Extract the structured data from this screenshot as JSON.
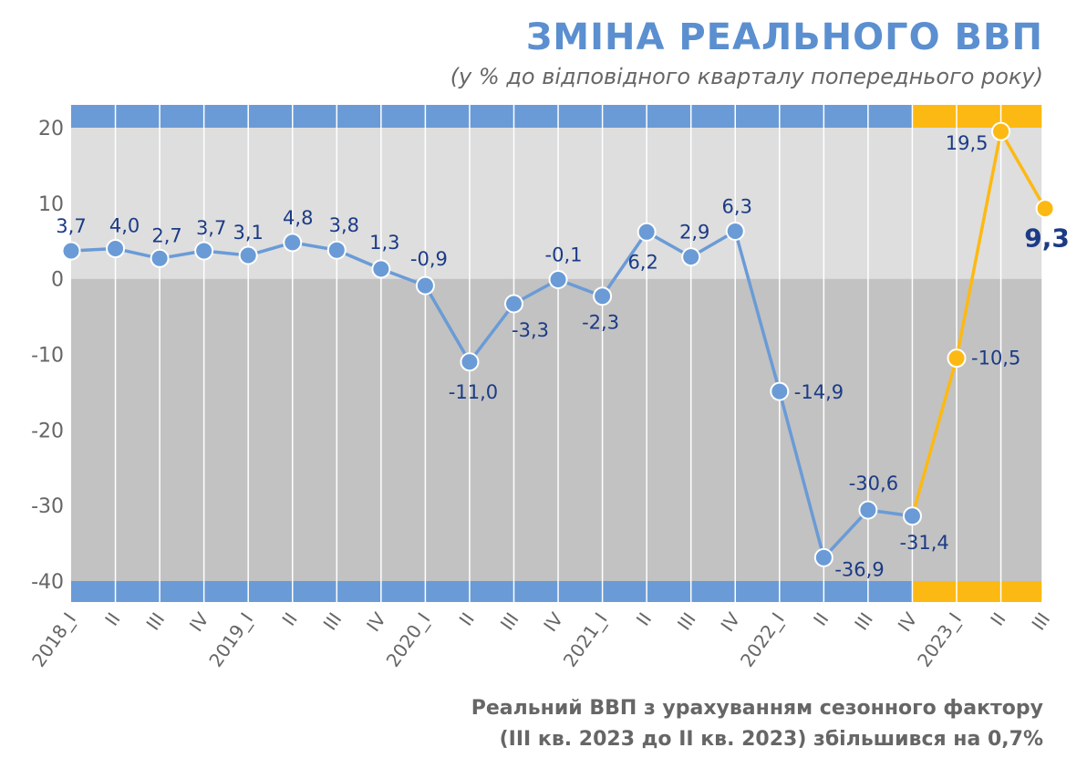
{
  "title": "ЗМІНА РЕАЛЬНОГО ВВП",
  "subtitle": "(у % до відповідного кварталу попереднього року)",
  "note": {
    "line1": "Реальний ВВП з урахуванням сезонного фактору",
    "line2": "(III кв. 2023 до II кв. 2023) збільшився на 0,7%"
  },
  "colors": {
    "series_blue": "#6a9bd6",
    "series_yellow": "#fdb913",
    "bg_positive": "#dedede",
    "bg_negative": "#c2c2c2",
    "label": "#1b3b86",
    "axis_text": "#666666"
  },
  "chart_data": {
    "type": "line",
    "title": "ЗМІНА РЕАЛЬНОГО ВВП",
    "subtitle": "(у % до відповідного кварталу попереднього року)",
    "ylim": [
      -40,
      20
    ],
    "yticks": [
      "20",
      "10",
      "0",
      "-10",
      "-20",
      "-30",
      "-40"
    ],
    "x": [
      "2018_I",
      "II",
      "III",
      "IV",
      "2019_I",
      "II",
      "III",
      "IV",
      "2020_I",
      "II",
      "III",
      "IV",
      "2021_I",
      "II",
      "III",
      "IV",
      "2022_I",
      "II",
      "III",
      "IV",
      "2023_I",
      "II",
      "III"
    ],
    "values": [
      3.7,
      4.0,
      2.7,
      3.7,
      3.1,
      4.8,
      3.8,
      1.3,
      -0.9,
      -11.0,
      -3.3,
      -0.1,
      -2.3,
      6.2,
      2.9,
      6.3,
      -14.9,
      -36.9,
      -30.6,
      -31.4,
      -10.5,
      19.5,
      9.3
    ],
    "labels": [
      "3,7",
      "4,0",
      "2,7",
      "3,7",
      "3,1",
      "4,8",
      "3,8",
      "1,3",
      "-0,9",
      "-11,0",
      "-3,3",
      "-0,1",
      "-2,3",
      "6,2",
      "2,9",
      "6,3",
      "-14,9",
      "-36,9",
      "-30,6",
      "-31,4",
      "-10,5",
      "19,5",
      "9,3"
    ],
    "highlight_from_index": 19,
    "grid": true,
    "legend": "none"
  }
}
